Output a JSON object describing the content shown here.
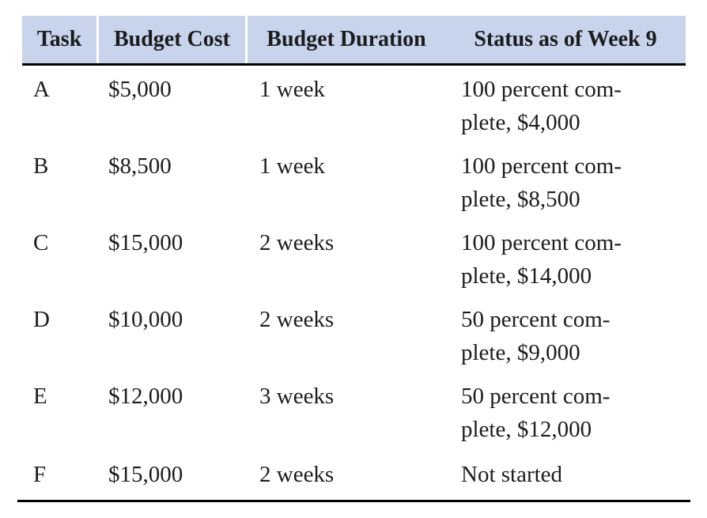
{
  "table": {
    "columns": [
      "Task",
      "Budget Cost",
      "Budget Duration",
      "Status as of Week 9"
    ],
    "rows": [
      {
        "task": "A",
        "cost": "$5,000",
        "duration": "1 week",
        "status_line1": "100 percent com-",
        "status_line2": "plete, $4,000"
      },
      {
        "task": "B",
        "cost": "$8,500",
        "duration": "1 week",
        "status_line1": "100 percent com-",
        "status_line2": "plete, $8,500"
      },
      {
        "task": "C",
        "cost": "$15,000",
        "duration": "2 weeks",
        "status_line1": "100 percent com-",
        "status_line2": "plete, $14,000"
      },
      {
        "task": "D",
        "cost": "$10,000",
        "duration": "2 weeks",
        "status_line1": "50 percent com-",
        "status_line2": "plete, $9,000"
      },
      {
        "task": "E",
        "cost": "$12,000",
        "duration": "3 weeks",
        "status_line1": "50 percent com-",
        "status_line2": "plete, $12,000"
      },
      {
        "task": "F",
        "cost": "$15,000",
        "duration": "2 weeks",
        "status_line1": "Not started",
        "status_line2": ""
      }
    ],
    "colors": {
      "header_bg": "#c7d4ec",
      "rule": "#000000",
      "text": "#1c1c1c"
    }
  },
  "chart_data": {
    "type": "table",
    "title": "Status as of Week 9",
    "columns": [
      "Task",
      "Budget Cost",
      "Budget Duration",
      "Status as of Week 9"
    ],
    "rows": [
      [
        "A",
        "$5,000",
        "1 week",
        "100 percent complete, $4,000"
      ],
      [
        "B",
        "$8,500",
        "1 week",
        "100 percent complete, $8,500"
      ],
      [
        "C",
        "$15,000",
        "2 weeks",
        "100 percent complete, $14,000"
      ],
      [
        "D",
        "$10,000",
        "2 weeks",
        "50 percent complete, $9,000"
      ],
      [
        "E",
        "$12,000",
        "3 weeks",
        "50 percent complete, $12,000"
      ],
      [
        "F",
        "$15,000",
        "2 weeks",
        "Not started"
      ]
    ]
  }
}
